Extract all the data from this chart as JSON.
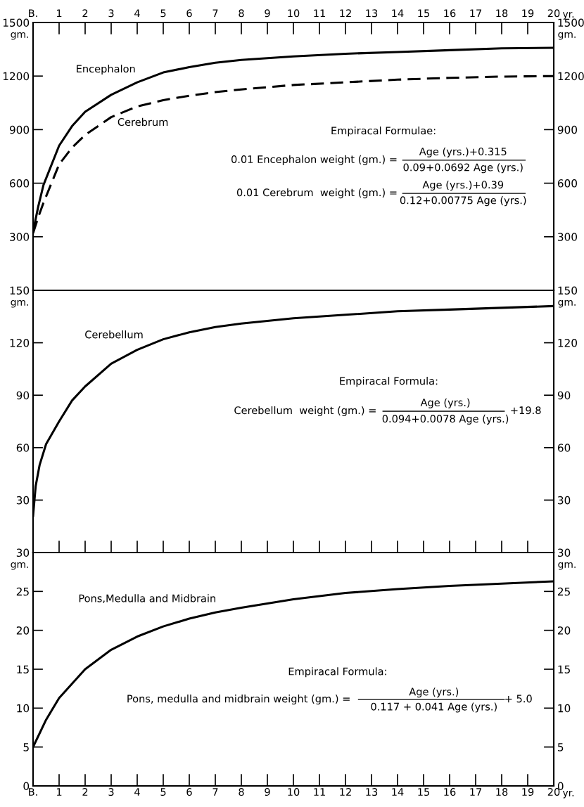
{
  "chart_data": [
    {
      "type": "line",
      "xlim": [
        0,
        20
      ],
      "xticks": [
        {
          "value": 0,
          "label": "B."
        },
        1,
        2,
        3,
        4,
        5,
        6,
        7,
        8,
        9,
        10,
        11,
        12,
        13,
        14,
        15,
        16,
        17,
        18,
        19,
        20
      ],
      "xlabel": "yr.",
      "ylabel": "gm.",
      "y2label": "gm.",
      "ylim": [
        0,
        1500
      ],
      "yticks": [
        300,
        600,
        900,
        1200,
        1500
      ],
      "y2lim": [
        0,
        1500
      ],
      "y2ticks": [
        300,
        600,
        900,
        1200,
        1500
      ],
      "x": [
        0,
        0.2,
        0.4,
        1,
        1.5,
        2,
        3,
        4,
        5,
        6,
        7,
        8,
        10,
        12,
        14,
        16,
        18,
        20
      ],
      "series": [
        {
          "name": "Encephalon",
          "color": "#000000",
          "line_style": "solid",
          "values": [
            330,
            470,
            590,
            810,
            920,
            1000,
            1095,
            1165,
            1220,
            1250,
            1275,
            1290,
            1310,
            1325,
            1335,
            1345,
            1355,
            1358
          ]
        },
        {
          "name": "Cerebrum",
          "color": "#000000",
          "line_style": "dashed",
          "values": [
            320,
            410,
            490,
            705,
            800,
            870,
            970,
            1030,
            1065,
            1090,
            1110,
            1125,
            1150,
            1165,
            1180,
            1190,
            1197,
            1200
          ]
        }
      ],
      "annotations": [
        "Empiracal Formulae:",
        "0.01 Encephalon weight (gm.) =",
        "Age (yrs.)+0.315",
        "0.09+0.0692 Age (yrs.)",
        "0.01 Cerebrum  weight (gm.) =",
        "Age (yrs.)+0.39",
        "0.12+0.00775 Age (yrs.)"
      ]
    },
    {
      "type": "line",
      "xlim": [
        0,
        20
      ],
      "xticks": [
        1,
        2,
        3,
        4,
        5,
        6,
        7,
        8,
        9,
        10,
        11,
        12,
        13,
        14,
        15,
        16,
        17,
        18,
        19
      ],
      "tick_labels": "y",
      "ylabel": "gm.",
      "y2label": "gm.",
      "ylim": [
        0,
        150
      ],
      "yticks": [
        30,
        60,
        90,
        120,
        150
      ],
      "y2lim": [
        0,
        150
      ],
      "y2ticks": [
        30,
        60,
        90,
        120,
        150
      ],
      "x": [
        0,
        0.1,
        0.25,
        0.5,
        1,
        1.5,
        2,
        3,
        4,
        5,
        6,
        7,
        8,
        10,
        12,
        14,
        16,
        18,
        20
      ],
      "series": [
        {
          "name": "Cerebellum",
          "color": "#000000",
          "line_style": "solid",
          "values": [
            21,
            38,
            50,
            62,
            75,
            87,
            95,
            108,
            116,
            122,
            126,
            129,
            131,
            134,
            136,
            138,
            139,
            140,
            141
          ]
        }
      ],
      "annotations": [
        "Empiracal Formula:",
        "Cerebellum  weight (gm.) =",
        "Age (yrs.)",
        "0.094+0.0078 Age (yrs.)",
        "+19.8"
      ]
    },
    {
      "type": "line",
      "xlim": [
        0,
        20
      ],
      "xticks": [
        {
          "value": 0,
          "label": "B."
        },
        1,
        2,
        3,
        4,
        5,
        6,
        7,
        8,
        9,
        10,
        11,
        12,
        13,
        14,
        15,
        16,
        17,
        18,
        19,
        20
      ],
      "xlabel": "yr.",
      "ylabel": "gm.",
      "y2label": "gm.",
      "ylim": [
        0,
        30
      ],
      "yticks": [
        0,
        5,
        10,
        15,
        20,
        25,
        30
      ],
      "y2lim": [
        0,
        30
      ],
      "y2ticks": [
        0,
        5,
        10,
        15,
        20,
        25,
        30
      ],
      "x": [
        0,
        0.5,
        1,
        2,
        3,
        4,
        5,
        6,
        7,
        8,
        10,
        12,
        14,
        16,
        18,
        20
      ],
      "series": [
        {
          "name": "Pons,Medulla and Midbrain",
          "color": "#000000",
          "line_style": "solid",
          "values": [
            5,
            8.5,
            11.3,
            15,
            17.5,
            19.2,
            20.5,
            21.5,
            22.3,
            22.9,
            24,
            24.8,
            25.3,
            25.7,
            26,
            26.3
          ]
        }
      ],
      "annotations": [
        "Empiracal Formula:",
        "Pons, medulla and midbrain weight (gm.) =",
        "Age (yrs.)",
        "0.117 + 0.041 Age (yrs.)",
        "+ 5.0"
      ]
    }
  ]
}
